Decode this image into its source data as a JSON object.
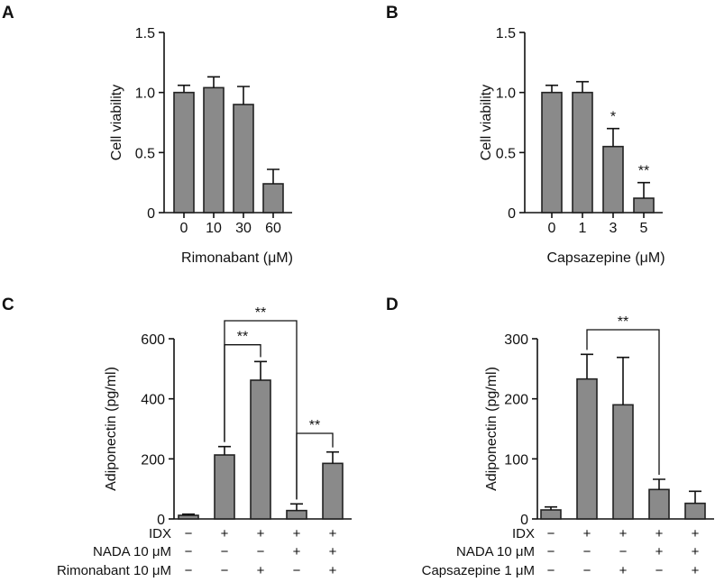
{
  "chart_data": [
    {
      "panel": "A",
      "type": "bar",
      "categories": [
        "0",
        "10",
        "30",
        "60"
      ],
      "values": [
        1.0,
        1.04,
        0.9,
        0.24
      ],
      "errors": [
        0.06,
        0.09,
        0.15,
        0.12
      ],
      "stars": [
        "",
        "",
        "",
        ""
      ],
      "xlabel": "Rimonabant (μM)",
      "ylabel": "Cell viability",
      "ylim": [
        0,
        1.5
      ],
      "yticks": [
        0,
        0.5,
        1.0,
        1.5
      ],
      "ytick_labels": [
        "0",
        "0.5",
        "1.0",
        "1.5"
      ],
      "brackets": []
    },
    {
      "panel": "B",
      "type": "bar",
      "categories": [
        "0",
        "1",
        "3",
        "5"
      ],
      "values": [
        1.0,
        1.0,
        0.55,
        0.12
      ],
      "errors": [
        0.06,
        0.09,
        0.15,
        0.13
      ],
      "stars": [
        "",
        "",
        "*",
        "**"
      ],
      "xlabel": "Capsazepine (μM)",
      "ylabel": "Cell viability",
      "ylim": [
        0,
        1.5
      ],
      "yticks": [
        0,
        0.5,
        1.0,
        1.5
      ],
      "ytick_labels": [
        "0",
        "0.5",
        "1.0",
        "1.5"
      ],
      "brackets": []
    },
    {
      "panel": "C",
      "type": "bar",
      "categories": [
        "1",
        "2",
        "3",
        "4",
        "5"
      ],
      "values": [
        12,
        213,
        462,
        28,
        185
      ],
      "errors": [
        4,
        28,
        62,
        22,
        38
      ],
      "stars": [
        "",
        "",
        "",
        "",
        ""
      ],
      "xlabel": "",
      "ylabel": "Adiponectin (pg/ml)",
      "ylim": [
        0,
        600
      ],
      "yticks": [
        0,
        200,
        400,
        600
      ],
      "ytick_labels": [
        "0",
        "200",
        "400",
        "600"
      ],
      "treatments": [
        {
          "label": "IDX",
          "signs": [
            "−",
            "+",
            "+",
            "+",
            "+"
          ]
        },
        {
          "label": "NADA 10 μM",
          "signs": [
            "−",
            "−",
            "−",
            "+",
            "+"
          ]
        },
        {
          "label": "Rimonabant 10 μM",
          "signs": [
            "−",
            "−",
            "+",
            "−",
            "+"
          ]
        }
      ],
      "brackets": [
        {
          "from": 1,
          "to": 3,
          "label": "**",
          "level": 660
        },
        {
          "from": 1,
          "to": 2,
          "label": "**",
          "level": 580
        },
        {
          "from": 3,
          "to": 4,
          "label": "**",
          "level": 285
        }
      ]
    },
    {
      "panel": "D",
      "type": "bar",
      "categories": [
        "1",
        "2",
        "3",
        "4",
        "5"
      ],
      "values": [
        15,
        233,
        190,
        49,
        26
      ],
      "errors": [
        5,
        41,
        79,
        17,
        20
      ],
      "stars": [
        "",
        "",
        "",
        "",
        ""
      ],
      "xlabel": "",
      "ylabel": "Adiponectin (pg/ml)",
      "ylim": [
        0,
        300
      ],
      "yticks": [
        0,
        100,
        200,
        300
      ],
      "ytick_labels": [
        "0",
        "100",
        "200",
        "300"
      ],
      "treatments": [
        {
          "label": "IDX",
          "signs": [
            "−",
            "+",
            "+",
            "+",
            "+"
          ]
        },
        {
          "label": "NADA 10 μM",
          "signs": [
            "−",
            "−",
            "−",
            "+",
            "+"
          ]
        },
        {
          "label": "Capsazepine 1 μM",
          "signs": [
            "−",
            "−",
            "+",
            "−",
            "+"
          ]
        }
      ],
      "brackets": [
        {
          "from": 1,
          "to": 3,
          "label": "**",
          "level": 315
        }
      ]
    }
  ]
}
